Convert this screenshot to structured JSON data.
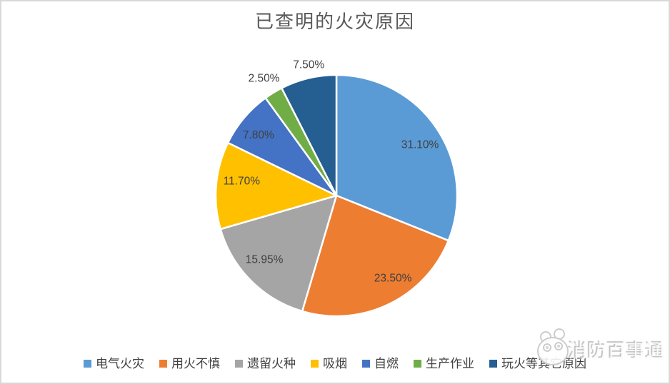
{
  "chart_data": {
    "type": "pie",
    "title": "已查明的火灾原因",
    "unit": "%",
    "direction": "clockwise",
    "start_angle_deg": 0,
    "legend_position": "bottom",
    "title_color": "#595959",
    "label_color": "#404040",
    "slice_border_color": "#ffffff",
    "slices": [
      {
        "label": "电气火灾",
        "value": 31.1,
        "display": "31.10%",
        "color": "#5B9BD5",
        "label_position": "inside"
      },
      {
        "label": "用火不慎",
        "value": 23.5,
        "display": "23.50%",
        "color": "#ED7D31",
        "label_position": "inside"
      },
      {
        "label": "遗留火种",
        "value": 15.95,
        "display": "15.95%",
        "color": "#A5A5A5",
        "label_position": "inside"
      },
      {
        "label": "吸烟",
        "value": 11.7,
        "display": "11.70%",
        "color": "#FFC000",
        "label_position": "inside"
      },
      {
        "label": "自燃",
        "value": 7.8,
        "display": "7.80%",
        "color": "#4472C4",
        "label_position": "inside"
      },
      {
        "label": "生产作业",
        "value": 2.5,
        "display": "2.50%",
        "color": "#70AD47",
        "label_position": "outside"
      },
      {
        "label": "玩火等其它原因",
        "value": 7.5,
        "display": "7.50%",
        "color": "#255E91",
        "label_position": "outside"
      }
    ]
  },
  "watermark": {
    "text": "消防百事通"
  }
}
